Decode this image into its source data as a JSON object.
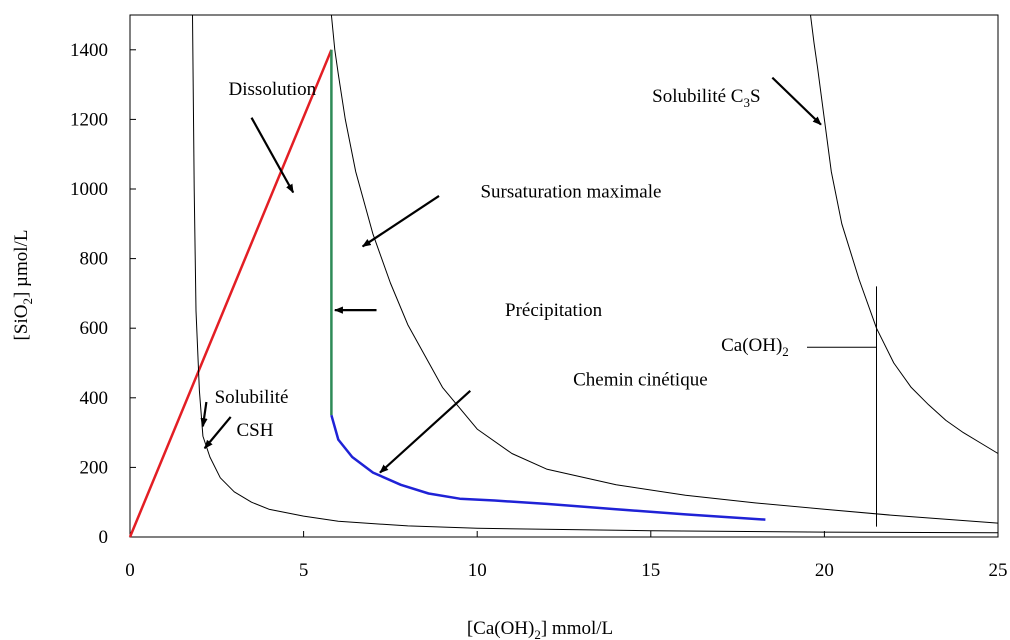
{
  "chart_data": {
    "type": "line",
    "xlabel": {
      "pre": "[Ca(OH)",
      "sub": "2",
      "post": "] mmol/L"
    },
    "ylabel": {
      "pre": "[SiO",
      "sub": "2",
      "post": "] µmol/L"
    },
    "xlim": [
      0,
      25
    ],
    "ylim": [
      0,
      1500
    ],
    "x_ticks": [
      0,
      5,
      10,
      15,
      20,
      25
    ],
    "y_ticks": [
      0,
      200,
      400,
      600,
      800,
      1000,
      1200,
      1400
    ],
    "grid": false,
    "legend": "none",
    "series": [
      {
        "key": "dissolution",
        "color": "#e31e24",
        "width": 2.5,
        "x": [
          0,
          5.8
        ],
        "y": [
          0,
          1400
        ]
      },
      {
        "key": "precipitation",
        "color": "#2e8b57",
        "width": 2.5,
        "x": [
          5.8,
          5.8
        ],
        "y": [
          1400,
          350
        ]
      },
      {
        "key": "kinetic",
        "color": "#1f22d6",
        "width": 2.5,
        "x": [
          5.8,
          6.0,
          6.4,
          7.0,
          7.8,
          8.6,
          9.5,
          10.5,
          12.0,
          14.0,
          16.0,
          18.3
        ],
        "y": [
          350,
          280,
          230,
          185,
          150,
          125,
          110,
          105,
          95,
          80,
          65,
          50
        ]
      },
      {
        "key": "csh-solubility",
        "color": "#000000",
        "width": 1,
        "x": [
          1.8,
          1.85,
          1.9,
          2.0,
          2.1,
          2.3,
          2.6,
          3.0,
          3.5,
          4.0,
          5.0,
          6.0,
          8.0,
          10.0,
          15.0,
          20.0,
          25.0
        ],
        "y": [
          1500,
          1000,
          650,
          420,
          290,
          230,
          170,
          130,
          100,
          80,
          60,
          45,
          32,
          25,
          18,
          14,
          12
        ]
      },
      {
        "key": "max-supersaturation",
        "color": "#000000",
        "width": 1,
        "x": [
          5.8,
          5.9,
          6.0,
          6.2,
          6.5,
          7.0,
          7.5,
          8.0,
          9.0,
          10.0,
          11.0,
          12.0,
          14.0,
          16.0,
          18.0,
          20.0,
          22.0,
          25.0
        ],
        "y": [
          1500,
          1400,
          1330,
          1200,
          1050,
          870,
          730,
          610,
          430,
          310,
          240,
          195,
          150,
          120,
          98,
          80,
          62,
          40
        ]
      },
      {
        "key": "c3s-solubility",
        "color": "#000000",
        "width": 1,
        "x": [
          19.6,
          19.7,
          19.8,
          20.0,
          20.2,
          20.5,
          21.0,
          21.5,
          22.0,
          22.5,
          23.0,
          23.5,
          24.0,
          24.5,
          25.0
        ],
        "y": [
          1500,
          1420,
          1350,
          1200,
          1050,
          900,
          740,
          600,
          500,
          430,
          380,
          335,
          300,
          270,
          240
        ]
      },
      {
        "key": "caoh2-vertical",
        "color": "#000000",
        "width": 1,
        "x": [
          21.5,
          21.5
        ],
        "y": [
          30,
          720
        ]
      },
      {
        "key": "caoh2-horizontal",
        "color": "#000000",
        "width": 1,
        "x": [
          19.5,
          21.5
        ],
        "y": [
          545,
          545
        ]
      }
    ],
    "annotations": [
      {
        "key": "dissolution",
        "text": "Dissolution",
        "tx": 4.1,
        "ty": 1270,
        "ax1": 3.5,
        "ay1": 1205,
        "ax2": 4.7,
        "ay2": 990
      },
      {
        "key": "max-supersaturation",
        "text": "Sursaturation maximale",
        "tx": 12.7,
        "ty": 975,
        "ax1": 8.9,
        "ay1": 980,
        "ax2": 6.7,
        "ay2": 835
      },
      {
        "key": "c3s-solubility",
        "pre": "Solubilité C",
        "sub": "3",
        "post": "S",
        "tx": 16.6,
        "ty": 1250,
        "ax1": 18.5,
        "ay1": 1320,
        "ax2": 19.9,
        "ay2": 1185
      },
      {
        "key": "precipitation",
        "text": "Précipitation",
        "tx": 12.2,
        "ty": 635,
        "ax1": 7.1,
        "ay1": 652,
        "ax2": 5.9,
        "ay2": 652
      },
      {
        "key": "chemin-cinetique",
        "text": "Chemin cinétique",
        "tx": 14.7,
        "ty": 435,
        "ax1": 9.8,
        "ay1": 420,
        "ax2": 7.2,
        "ay2": 185
      },
      {
        "key": "csh-solubility-1",
        "text": "Solubilité",
        "tx": 3.5,
        "ty": 385,
        "ax1": 2.2,
        "ay1": 388,
        "ax2": 2.1,
        "ay2": 318
      },
      {
        "key": "csh-solubility-2",
        "text": "CSH",
        "tx": 3.6,
        "ty": 290,
        "ax1": 2.9,
        "ay1": 345,
        "ax2": 2.15,
        "ay2": 255
      },
      {
        "key": "caoh2",
        "pre": "Ca(OH)",
        "sub": "2",
        "post": "",
        "tx": 18.0,
        "ty": 535
      }
    ]
  }
}
